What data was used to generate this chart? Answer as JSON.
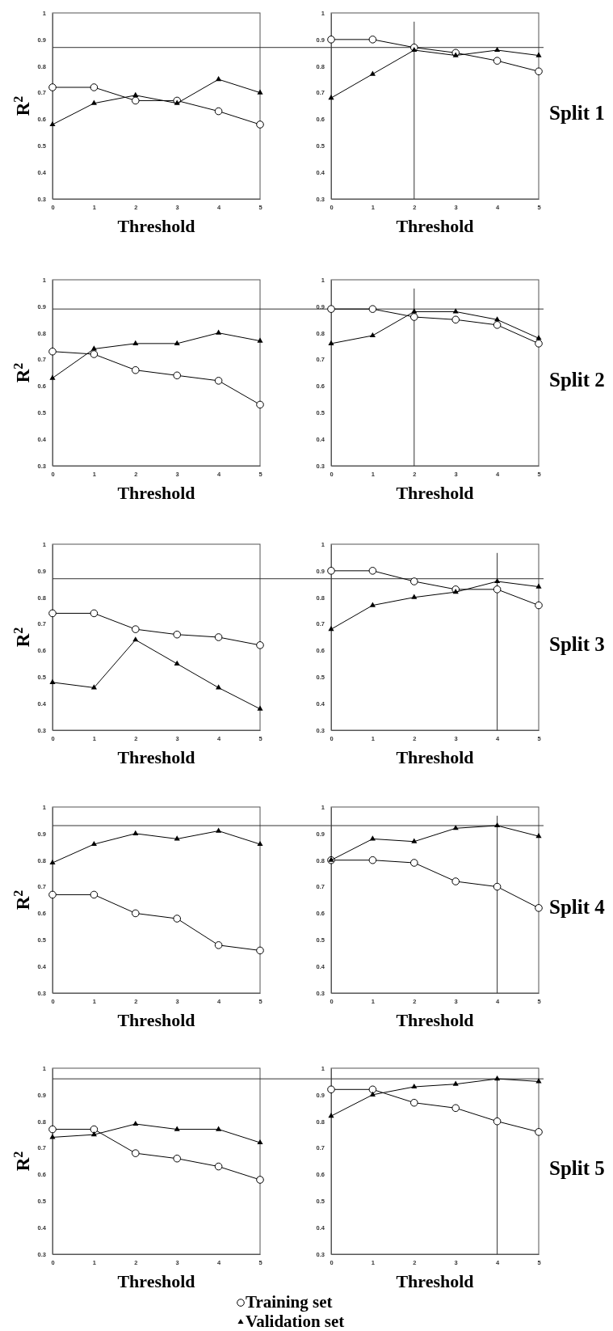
{
  "chart_data": [
    {
      "type": "line",
      "xlabel": "Threshold",
      "ylabel": "R$^{2}$",
      "x": [
        0,
        1,
        2,
        3,
        4,
        5
      ],
      "xlim": [
        0,
        5
      ],
      "xticks": [
        0,
        1,
        2,
        3,
        4,
        5
      ],
      "ylim": [
        0.3,
        1
      ],
      "yticks": [
        0.3,
        0.4,
        0.5,
        0.6,
        0.7,
        0.8,
        0.9,
        1
      ],
      "ref_lines": [
        {
          "axis": "y",
          "value": 0.87,
          "color": "#333333"
        }
      ],
      "series": [
        {
          "color": "#000000",
          "marker": "circle",
          "values": [
            0.72,
            0.72,
            0.67,
            0.67,
            0.63,
            0.58
          ]
        },
        {
          "color": "#000000",
          "marker": "triangle",
          "values": [
            0.58,
            0.66,
            0.69,
            0.66,
            0.75,
            0.7
          ]
        }
      ]
    },
    {
      "type": "line",
      "xlabel": "Threshold",
      "annotations": [
        "Split 1"
      ],
      "x": [
        0,
        1,
        2,
        3,
        4,
        5
      ],
      "xlim": [
        0,
        5
      ],
      "xticks": [
        0,
        1,
        2,
        3,
        4,
        5
      ],
      "ylim": [
        0.3,
        1
      ],
      "yticks": [
        0.3,
        0.4,
        0.5,
        0.6,
        0.7,
        0.8,
        0.9,
        1
      ],
      "ref_lines": [
        {
          "axis": "y",
          "value": 0.87,
          "color": "#333333"
        },
        {
          "axis": "x",
          "value": 2,
          "color": "#333333"
        }
      ],
      "series": [
        {
          "color": "#000000",
          "marker": "circle",
          "values": [
            0.9,
            0.9,
            0.87,
            0.85,
            0.82,
            0.78
          ]
        },
        {
          "color": "#000000",
          "marker": "triangle",
          "values": [
            0.68,
            0.77,
            0.86,
            0.84,
            0.86,
            0.84
          ]
        }
      ]
    },
    {
      "type": "line",
      "xlabel": "Threshold",
      "ylabel": "R$^{2}$",
      "x": [
        0,
        1,
        2,
        3,
        4,
        5
      ],
      "xlim": [
        0,
        5
      ],
      "xticks": [
        0,
        1,
        2,
        3,
        4,
        5
      ],
      "ylim": [
        0.3,
        1
      ],
      "yticks": [
        0.3,
        0.4,
        0.5,
        0.6,
        0.7,
        0.8,
        0.9,
        1
      ],
      "ref_lines": [
        {
          "axis": "y",
          "value": 0.89,
          "color": "#333333"
        }
      ],
      "series": [
        {
          "color": "#000000",
          "marker": "circle",
          "values": [
            0.73,
            0.72,
            0.66,
            0.64,
            0.62,
            0.53
          ]
        },
        {
          "color": "#000000",
          "marker": "triangle",
          "values": [
            0.63,
            0.74,
            0.76,
            0.76,
            0.8,
            0.77
          ]
        }
      ]
    },
    {
      "type": "line",
      "xlabel": "Threshold",
      "annotations": [
        "Split 2"
      ],
      "x": [
        0,
        1,
        2,
        3,
        4,
        5
      ],
      "xlim": [
        0,
        5
      ],
      "xticks": [
        0,
        1,
        2,
        3,
        4,
        5
      ],
      "ylim": [
        0.3,
        1
      ],
      "yticks": [
        0.3,
        0.4,
        0.5,
        0.6,
        0.7,
        0.8,
        0.9,
        1
      ],
      "ref_lines": [
        {
          "axis": "y",
          "value": 0.89,
          "color": "#333333"
        },
        {
          "axis": "x",
          "value": 2,
          "color": "#333333"
        }
      ],
      "series": [
        {
          "color": "#000000",
          "marker": "circle",
          "values": [
            0.89,
            0.89,
            0.86,
            0.85,
            0.83,
            0.76
          ]
        },
        {
          "color": "#000000",
          "marker": "triangle",
          "values": [
            0.76,
            0.79,
            0.88,
            0.88,
            0.85,
            0.78
          ]
        }
      ]
    },
    {
      "type": "line",
      "xlabel": "Threshold",
      "ylabel": "R$^{2}$",
      "x": [
        0,
        1,
        2,
        3,
        4,
        5
      ],
      "xlim": [
        0,
        5
      ],
      "xticks": [
        0,
        1,
        2,
        3,
        4,
        5
      ],
      "ylim": [
        0.3,
        1
      ],
      "yticks": [
        0.3,
        0.4,
        0.5,
        0.6,
        0.7,
        0.8,
        0.9,
        1
      ],
      "ref_lines": [
        {
          "axis": "y",
          "value": 0.87,
          "color": "#333333"
        }
      ],
      "series": [
        {
          "color": "#000000",
          "marker": "circle",
          "values": [
            0.74,
            0.74,
            0.68,
            0.66,
            0.65,
            0.62
          ]
        },
        {
          "color": "#000000",
          "marker": "triangle",
          "values": [
            0.48,
            0.46,
            0.64,
            0.55,
            0.46,
            0.38
          ]
        }
      ]
    },
    {
      "type": "line",
      "xlabel": "Threshold",
      "annotations": [
        "Split 3"
      ],
      "x": [
        0,
        1,
        2,
        3,
        4,
        5
      ],
      "xlim": [
        0,
        5
      ],
      "xticks": [
        0,
        1,
        2,
        3,
        4,
        5
      ],
      "ylim": [
        0.3,
        1
      ],
      "yticks": [
        0.3,
        0.4,
        0.5,
        0.6,
        0.7,
        0.8,
        0.9,
        1
      ],
      "ref_lines": [
        {
          "axis": "y",
          "value": 0.87,
          "color": "#333333"
        },
        {
          "axis": "x",
          "value": 4,
          "color": "#333333"
        }
      ],
      "series": [
        {
          "color": "#000000",
          "marker": "circle",
          "values": [
            0.9,
            0.9,
            0.86,
            0.83,
            0.83,
            0.77
          ]
        },
        {
          "color": "#000000",
          "marker": "triangle",
          "values": [
            0.68,
            0.77,
            0.8,
            0.82,
            0.86,
            0.84
          ]
        }
      ]
    },
    {
      "type": "line",
      "xlabel": "Threshold",
      "ylabel": "R$^{2}$",
      "x": [
        0,
        1,
        2,
        3,
        4,
        5
      ],
      "xlim": [
        0,
        5
      ],
      "xticks": [
        0,
        1,
        2,
        3,
        4,
        5
      ],
      "ylim": [
        0.3,
        1
      ],
      "yticks": [
        0.3,
        0.4,
        0.5,
        0.6,
        0.7,
        0.8,
        0.9,
        1
      ],
      "ref_lines": [
        {
          "axis": "y",
          "value": 0.93,
          "color": "#333333"
        }
      ],
      "series": [
        {
          "color": "#000000",
          "marker": "circle",
          "values": [
            0.67,
            0.67,
            0.6,
            0.58,
            0.48,
            0.46
          ]
        },
        {
          "color": "#000000",
          "marker": "triangle",
          "values": [
            0.79,
            0.86,
            0.9,
            0.88,
            0.91,
            0.86
          ]
        }
      ]
    },
    {
      "type": "line",
      "xlabel": "Threshold",
      "annotations": [
        "Split 4"
      ],
      "x": [
        0,
        1,
        2,
        3,
        4,
        5
      ],
      "xlim": [
        0,
        5
      ],
      "xticks": [
        0,
        1,
        2,
        3,
        4,
        5
      ],
      "ylim": [
        0.3,
        1
      ],
      "yticks": [
        0.3,
        0.4,
        0.5,
        0.6,
        0.7,
        0.8,
        0.9,
        1
      ],
      "ref_lines": [
        {
          "axis": "y",
          "value": 0.93,
          "color": "#333333"
        },
        {
          "axis": "x",
          "value": 4,
          "color": "#333333"
        }
      ],
      "series": [
        {
          "color": "#000000",
          "marker": "circle",
          "values": [
            0.8,
            0.8,
            0.79,
            0.72,
            0.7,
            0.62
          ]
        },
        {
          "color": "#000000",
          "marker": "triangle",
          "values": [
            0.8,
            0.88,
            0.87,
            0.92,
            0.93,
            0.89
          ]
        }
      ]
    },
    {
      "type": "line",
      "xlabel": "Threshold",
      "ylabel": "R$^{2}$",
      "x": [
        0,
        1,
        2,
        3,
        4,
        5
      ],
      "xlim": [
        0,
        5
      ],
      "xticks": [
        0,
        1,
        2,
        3,
        4,
        5
      ],
      "ylim": [
        0.3,
        1
      ],
      "yticks": [
        0.3,
        0.4,
        0.5,
        0.6,
        0.7,
        0.8,
        0.9,
        1
      ],
      "ref_lines": [
        {
          "axis": "y",
          "value": 0.96,
          "color": "#333333"
        }
      ],
      "series": [
        {
          "color": "#000000",
          "marker": "circle",
          "values": [
            0.77,
            0.77,
            0.68,
            0.66,
            0.63,
            0.58
          ]
        },
        {
          "color": "#000000",
          "marker": "triangle",
          "values": [
            0.74,
            0.75,
            0.79,
            0.77,
            0.77,
            0.72
          ]
        }
      ]
    },
    {
      "type": "line",
      "xlabel": "Threshold",
      "annotations": [
        "Split 5"
      ],
      "legend": "bottom",
      "x": [
        0,
        1,
        2,
        3,
        4,
        5
      ],
      "xlim": [
        0,
        5
      ],
      "xticks": [
        0,
        1,
        2,
        3,
        4,
        5
      ],
      "ylim": [
        0.3,
        1
      ],
      "yticks": [
        0.3,
        0.4,
        0.5,
        0.6,
        0.7,
        0.8,
        0.9,
        1
      ],
      "ref_lines": [
        {
          "axis": "y",
          "value": 0.96,
          "color": "#333333"
        },
        {
          "axis": "x",
          "value": 4,
          "color": "#333333"
        }
      ],
      "series": [
        {
          "name": "Training set",
          "color": "#000000",
          "marker": "circle",
          "values": [
            0.92,
            0.92,
            0.87,
            0.85,
            0.8,
            0.76
          ]
        },
        {
          "name": "Validation set",
          "color": "#000000",
          "marker": "triangle",
          "values": [
            0.82,
            0.9,
            0.93,
            0.94,
            0.96,
            0.95
          ]
        }
      ]
    }
  ]
}
